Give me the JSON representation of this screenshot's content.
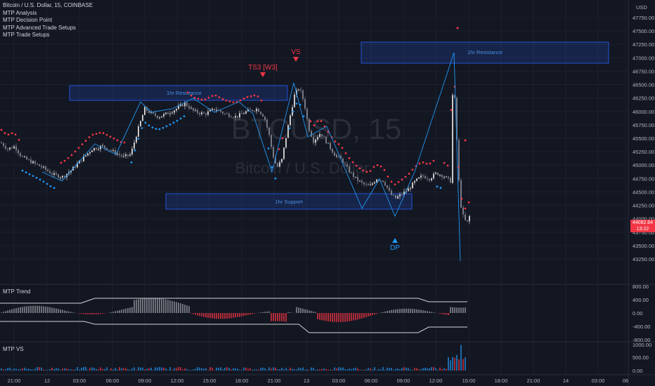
{
  "header": {
    "symbol_line": "Bitcoin / U.S. Dollar, 15, COINBASE",
    "indicators": [
      "MTP Analysis",
      "MTP Decision Point",
      "MTP Advanced Trade Setups",
      "MTP Trade Setups"
    ]
  },
  "watermark": {
    "symbol": "BTCUSD, 15",
    "name": "Bitcoin / U.S. Dollar"
  },
  "price_axis": {
    "currency": "USD",
    "labels": [
      "47750.00",
      "47500.00",
      "47250.00",
      "47000.00",
      "46750.00",
      "46500.00",
      "46250.00",
      "46000.00",
      "45750.00",
      "45500.00",
      "45250.00",
      "45000.00",
      "44750.00",
      "44500.00",
      "44250.00",
      "44000.00",
      "43750.00",
      "43500.00",
      "43250.00"
    ],
    "current_price": "44082.84",
    "countdown": "13:22"
  },
  "annotations": {
    "resistance_label": "1hr Resistance",
    "support_label": "1hr Support",
    "ts3_label": "TS3 [W3]",
    "vs_label": "VS",
    "dp_label": "DP"
  },
  "trend_pane": {
    "title": "MTP Trend",
    "labels": [
      "800.00",
      "400.00",
      "0.00",
      "-400.00",
      "-800.00"
    ]
  },
  "vs_pane": {
    "title": "MTP VS",
    "labels": [
      "1000.00",
      "500.00",
      "0.00"
    ]
  },
  "time_axis": {
    "labels": [
      "21:00",
      "12",
      "03:00",
      "06:00",
      "09:00",
      "12:00",
      "15:00",
      "18:00",
      "21:00",
      "13",
      "03:00",
      "06:00",
      "09:00",
      "12:00",
      "15:00",
      "18:00",
      "21:00",
      "14",
      "03:00",
      "06"
    ]
  },
  "colors": {
    "up": "#c8c8c8",
    "down": "#787b86",
    "red": "#f23645",
    "blue": "#2196f3",
    "zone": "#2962ff"
  },
  "chart_data": {
    "type": "candlestick",
    "price_path": [
      [
        0,
        45420
      ],
      [
        10,
        45300
      ],
      [
        20,
        45350
      ],
      [
        30,
        45150
      ],
      [
        45,
        45050
      ],
      [
        60,
        44950
      ],
      [
        75,
        44820
      ],
      [
        88,
        44780
      ],
      [
        100,
        44900
      ],
      [
        115,
        45100
      ],
      [
        130,
        45300
      ],
      [
        145,
        45350
      ],
      [
        160,
        45250
      ],
      [
        175,
        45150
      ],
      [
        185,
        45200
      ],
      [
        195,
        45650
      ],
      [
        205,
        46050
      ],
      [
        215,
        45950
      ],
      [
        225,
        45900
      ],
      [
        235,
        45950
      ],
      [
        250,
        46050
      ],
      [
        262,
        46150
      ],
      [
        275,
        46000
      ],
      [
        290,
        45950
      ],
      [
        305,
        46050
      ],
      [
        320,
        45950
      ],
      [
        335,
        45900
      ],
      [
        350,
        46000
      ],
      [
        365,
        46050
      ],
      [
        375,
        45900
      ],
      [
        382,
        45550
      ],
      [
        387,
        45200
      ],
      [
        393,
        44950
      ],
      [
        400,
        45100
      ],
      [
        410,
        45800
      ],
      [
        418,
        46300
      ],
      [
        425,
        46450
      ],
      [
        432,
        46150
      ],
      [
        438,
        45700
      ],
      [
        445,
        45450
      ],
      [
        455,
        45600
      ],
      [
        465,
        45400
      ],
      [
        475,
        45200
      ],
      [
        485,
        45100
      ],
      [
        495,
        44900
      ],
      [
        505,
        44750
      ],
      [
        515,
        44650
      ],
      [
        525,
        44600
      ],
      [
        535,
        44750
      ],
      [
        545,
        44700
      ],
      [
        555,
        44450
      ],
      [
        562,
        44380
      ],
      [
        570,
        44450
      ],
      [
        580,
        44550
      ],
      [
        590,
        44700
      ],
      [
        600,
        44800
      ],
      [
        610,
        44750
      ],
      [
        620,
        44850
      ],
      [
        630,
        44800
      ],
      [
        640,
        44700
      ],
      [
        643,
        46300
      ],
      [
        647,
        46200
      ],
      [
        650,
        45100
      ],
      [
        654,
        44300
      ],
      [
        658,
        44050
      ],
      [
        663,
        43900
      ],
      [
        668,
        44082
      ]
    ],
    "resistance_zone_1": {
      "price_top": 46400,
      "price_bottom": 46150
    },
    "resistance_zone_2": {
      "price_top": 47100,
      "price_bottom": 46750
    },
    "support_zone": {
      "price_top": 44550,
      "price_bottom": 44300
    }
  }
}
